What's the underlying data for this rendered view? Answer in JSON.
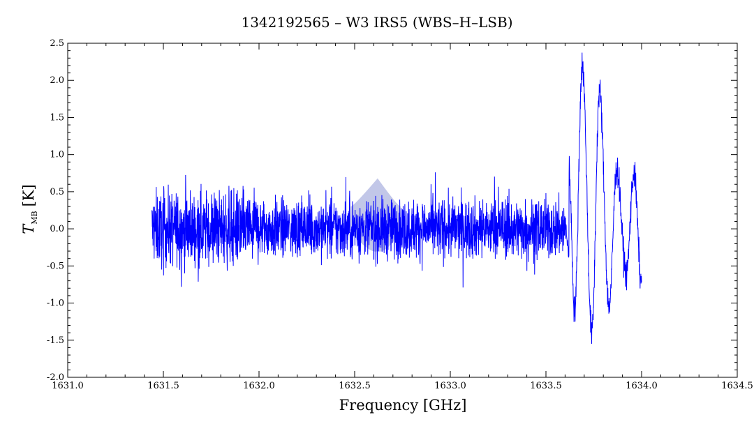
{
  "chart_data": {
    "type": "line",
    "title": "1342192565 – W3 IRS5 (WBS–H–LSB)",
    "xlabel": "Frequency [GHz]",
    "ylabel_main": "T",
    "ylabel_sub": "MB",
    "ylabel_unit": "[K]",
    "xlim": [
      1631.0,
      1634.5
    ],
    "ylim": [
      -2.0,
      2.5
    ],
    "x_ticks": [
      "1631.0",
      "1631.5",
      "1632.0",
      "1632.5",
      "1633.0",
      "1633.5",
      "1634.0",
      "1634.5"
    ],
    "y_ticks": [
      "-2.0",
      "-1.5",
      "-1.0",
      "-0.5",
      "0.0",
      "0.5",
      "1.0",
      "1.5",
      "2.0",
      "2.5"
    ],
    "grid": false,
    "colors": {
      "series": "#0000ff",
      "band_fill": "#aeb4e0",
      "axes": "#000000"
    },
    "series": [
      {
        "x_start": 1631.44,
        "x_end": 1634.0,
        "noise_sigma": 0.2,
        "features": [
          {
            "x": 1633.62,
            "y": 0.8
          },
          {
            "x": 1633.65,
            "y": -1.1
          },
          {
            "x": 1633.69,
            "y": 2.2
          },
          {
            "x": 1633.74,
            "y": -1.4
          },
          {
            "x": 1633.78,
            "y": 1.85
          },
          {
            "x": 1633.83,
            "y": -1.05
          },
          {
            "x": 1633.87,
            "y": 0.8
          },
          {
            "x": 1633.92,
            "y": -0.6
          },
          {
            "x": 1633.96,
            "y": 0.75
          },
          {
            "x": 1634.0,
            "y": -0.75
          }
        ]
      }
    ],
    "shaded_band": {
      "x_center": 1632.62,
      "x_range": [
        1632.48,
        1632.74
      ],
      "y_top": 0.68,
      "y_bottom": -0.3
    }
  }
}
